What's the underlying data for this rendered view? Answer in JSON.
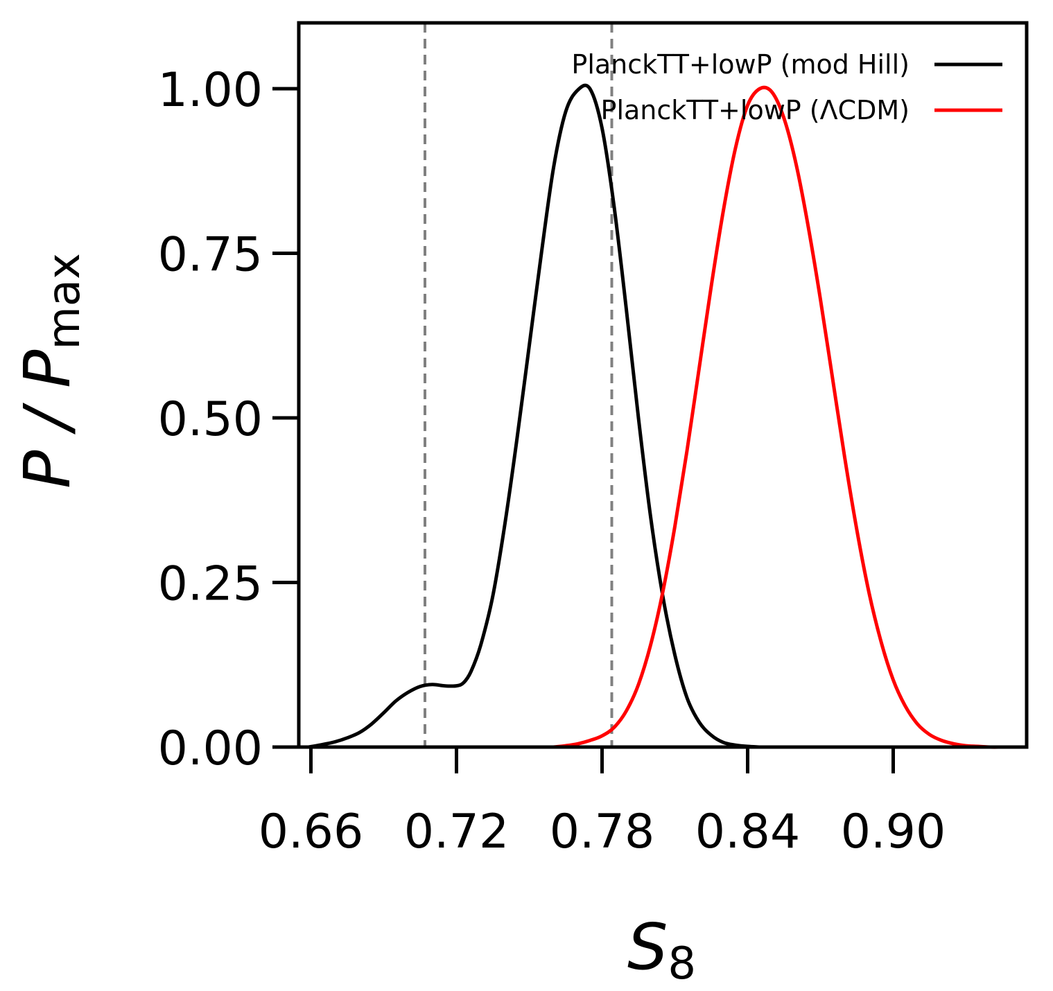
{
  "chart_data": {
    "type": "line",
    "title": "",
    "xlabel": "S",
    "xlabel_sub": "8",
    "ylabel": "P / P",
    "ylabel_sub": "max",
    "xlim": [
      0.655,
      0.955
    ],
    "ylim": [
      0,
      1.1
    ],
    "xticks": [
      0.66,
      0.72,
      0.78,
      0.84,
      0.9
    ],
    "xtick_labels": [
      "0.66",
      "0.72",
      "0.78",
      "0.84",
      "0.90"
    ],
    "yticks": [
      0.0,
      0.25,
      0.5,
      0.75,
      1.0
    ],
    "ytick_labels": [
      "0.00",
      "0.25",
      "0.50",
      "0.75",
      "1.00"
    ],
    "grid": false,
    "legend_position": "top-right",
    "vlines": [
      {
        "x": 0.707,
        "color": "#808080",
        "style": "dashed"
      },
      {
        "x": 0.784,
        "color": "#808080",
        "style": "dashed"
      }
    ],
    "series": [
      {
        "name": "PlanckTT+lowP (mod Hill)",
        "color": "#000000",
        "x": [
          0.659,
          0.665,
          0.67,
          0.675,
          0.68,
          0.685,
          0.69,
          0.695,
          0.7,
          0.705,
          0.71,
          0.715,
          0.72,
          0.723,
          0.726,
          0.73,
          0.735,
          0.74,
          0.745,
          0.75,
          0.755,
          0.76,
          0.765,
          0.77,
          0.775,
          0.78,
          0.785,
          0.79,
          0.795,
          0.8,
          0.805,
          0.81,
          0.815,
          0.82,
          0.825,
          0.83,
          0.835,
          0.84,
          0.845
        ],
        "y": [
          0.0,
          0.004,
          0.008,
          0.014,
          0.022,
          0.035,
          0.052,
          0.07,
          0.083,
          0.092,
          0.095,
          0.093,
          0.093,
          0.098,
          0.115,
          0.155,
          0.23,
          0.34,
          0.47,
          0.61,
          0.75,
          0.88,
          0.965,
          0.998,
          1.0,
          0.94,
          0.82,
          0.665,
          0.5,
          0.35,
          0.23,
          0.14,
          0.075,
          0.038,
          0.018,
          0.007,
          0.003,
          0.001,
          0.0
        ]
      },
      {
        "name": "PlanckTT+lowP (ΛCDM)",
        "color": "#ff0000",
        "x": [
          0.76,
          0.765,
          0.77,
          0.775,
          0.78,
          0.785,
          0.79,
          0.795,
          0.8,
          0.805,
          0.81,
          0.815,
          0.82,
          0.825,
          0.83,
          0.835,
          0.84,
          0.845,
          0.85,
          0.855,
          0.86,
          0.865,
          0.87,
          0.875,
          0.88,
          0.885,
          0.89,
          0.895,
          0.9,
          0.905,
          0.91,
          0.915,
          0.92,
          0.925,
          0.93,
          0.935,
          0.94,
          0.945,
          0.95
        ],
        "y": [
          0.0,
          0.002,
          0.005,
          0.01,
          0.017,
          0.03,
          0.055,
          0.095,
          0.155,
          0.235,
          0.335,
          0.45,
          0.575,
          0.7,
          0.815,
          0.91,
          0.975,
          1.0,
          0.995,
          0.955,
          0.885,
          0.79,
          0.68,
          0.56,
          0.44,
          0.33,
          0.235,
          0.16,
          0.102,
          0.062,
          0.035,
          0.019,
          0.01,
          0.005,
          0.002,
          0.001,
          0.0,
          0.0,
          0.0
        ]
      }
    ]
  }
}
